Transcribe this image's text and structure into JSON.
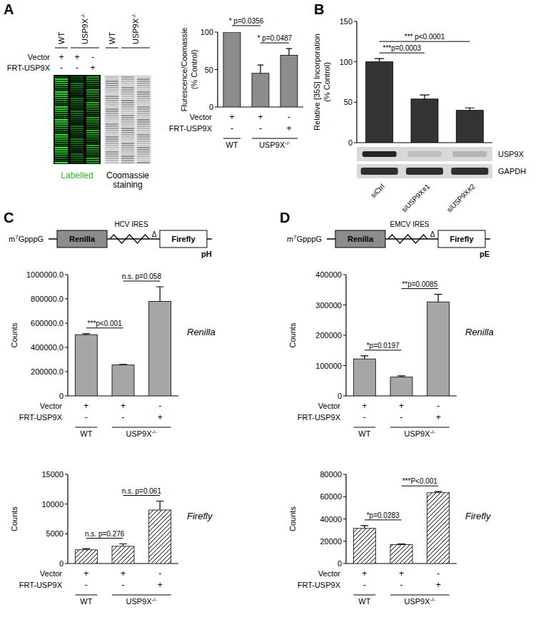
{
  "chart_data": [
    {
      "type": "bar",
      "ylabel": [
        "Flurescence/Coomassie",
        "(% Control)"
      ],
      "categories": [
        null,
        null,
        null
      ],
      "values": [
        100,
        45,
        69
      ],
      "errors": [
        1,
        11,
        9
      ],
      "color": "#8c8c8c",
      "ylim": [
        0,
        100
      ],
      "yticks": [
        0,
        50,
        100
      ],
      "annotations": [
        {
          "text": "* p=0.0356",
          "from": 0,
          "to": 1
        },
        {
          "text": "* p=0.0487",
          "from": 1,
          "to": 2
        }
      ],
      "conditions": [
        {
          "label": "Vector",
          "marks": [
            "+",
            "+",
            "-"
          ]
        },
        {
          "label": "FRT-USP9X",
          "marks": [
            "-",
            "-",
            "+"
          ]
        }
      ],
      "groups": [
        {
          "label": "WT",
          "count": 1
        },
        {
          "label": "USP9X",
          "sup": "-/-",
          "count": 2
        }
      ]
    },
    {
      "type": "bar",
      "ylabel": [
        "Relative [35S] Incorporation",
        "(% Control)"
      ],
      "categories": [
        "siCtrl",
        "siUSP9X#1",
        "siUSP9X#2"
      ],
      "values": [
        100,
        54,
        40
      ],
      "errors": [
        4,
        5,
        3
      ],
      "color": "#333333",
      "ylim": [
        0,
        150
      ],
      "yticks": [
        0,
        50,
        100,
        150
      ],
      "annotations": [
        {
          "text": "***p=0.0003",
          "from": 0,
          "to": 1
        },
        {
          "text": "*** p<0.0001",
          "from": 0,
          "to": 2
        }
      ]
    },
    {
      "type": "bar",
      "ylabel": [
        "Counts"
      ],
      "subtitle": "Renilla",
      "categories": [
        null,
        null,
        null
      ],
      "values": [
        505000,
        255000,
        780000
      ],
      "errors": [
        8000,
        5000,
        120000
      ],
      "color": "#a6a6a6",
      "ylim": [
        0,
        1000000
      ],
      "yticks": [
        0,
        {
          "value": 200000,
          "label": "200000.0"
        },
        {
          "value": 400000,
          "label": "400000.0"
        },
        {
          "value": 600000,
          "label": "600000.0"
        },
        {
          "value": 800000,
          "label": "800000.0"
        },
        {
          "value": 1000000,
          "label": "1000000.0"
        }
      ],
      "annotations": [
        {
          "text": "***p<0.001",
          "from": 0,
          "to": 1
        },
        {
          "text": "n.s. p=0.058",
          "from": 1,
          "to": 2
        }
      ],
      "conditions": [
        {
          "label": "Vector",
          "marks": [
            "+",
            "+",
            "-"
          ]
        },
        {
          "label": "FRT-USP9X",
          "marks": [
            "-",
            "-",
            "+"
          ]
        }
      ],
      "groups": [
        {
          "label": "WT",
          "count": 1
        },
        {
          "label": "USP9X",
          "sup": "-/-",
          "count": 2
        }
      ]
    },
    {
      "type": "bar",
      "ylabel": [
        "Counts"
      ],
      "subtitle": "Firefly",
      "categories": [
        null,
        null,
        null
      ],
      "values": [
        2300,
        2900,
        9000
      ],
      "errors": [
        200,
        400,
        1500
      ],
      "color": "#ffffff",
      "ylim": [
        0,
        15000
      ],
      "yticks": [
        0,
        5000,
        10000,
        15000
      ],
      "annotations": [
        {
          "text": "n.s. p=0.276",
          "from": 0,
          "to": 1
        },
        {
          "text": "n.s. p=0.061",
          "from": 1,
          "to": 2
        }
      ],
      "conditions": [
        {
          "label": "Vector",
          "marks": [
            "+",
            "+",
            "-"
          ]
        },
        {
          "label": "FRT-USP9X",
          "marks": [
            "-",
            "-",
            "+"
          ]
        }
      ],
      "groups": [
        {
          "label": "WT",
          "count": 1
        },
        {
          "label": "USP9X",
          "sup": "-/-",
          "count": 2
        }
      ]
    },
    {
      "type": "bar",
      "ylabel": [
        "Counts"
      ],
      "subtitle": "Renilla",
      "categories": [
        null,
        null,
        null
      ],
      "values": [
        122000,
        62000,
        310000
      ],
      "errors": [
        10000,
        4000,
        25000
      ],
      "color": "#a6a6a6",
      "ylim": [
        0,
        400000
      ],
      "yticks": [
        0,
        100000,
        200000,
        300000,
        400000
      ],
      "annotations": [
        {
          "text": "*p=0.0197",
          "from": 0,
          "to": 1
        },
        {
          "text": "**p=0.0085",
          "from": 1,
          "to": 2
        }
      ],
      "conditions": [
        {
          "label": "Vector",
          "marks": [
            "+",
            "+",
            "-"
          ]
        },
        {
          "label": "FRT-USP9X",
          "marks": [
            "-",
            "-",
            "+"
          ]
        }
      ],
      "groups": [
        {
          "label": "WT",
          "count": 1
        },
        {
          "label": "USP9X",
          "sup": "-/-",
          "count": 2
        }
      ]
    },
    {
      "type": "bar",
      "ylabel": [
        "Counts"
      ],
      "subtitle": "Firefly",
      "categories": [
        null,
        null,
        null
      ],
      "values": [
        31500,
        17000,
        63500
      ],
      "errors": [
        2500,
        500,
        1000
      ],
      "color": "#ffffff",
      "ylim": [
        0,
        80000
      ],
      "yticks": [
        0,
        20000,
        40000,
        60000,
        80000
      ],
      "annotations": [
        {
          "text": "*p=0.0283",
          "from": 0,
          "to": 1
        },
        {
          "text": "***P<0.001",
          "from": 1,
          "to": 2
        }
      ],
      "conditions": [
        {
          "label": "Vector",
          "marks": [
            "+",
            "+",
            "-"
          ]
        },
        {
          "label": "FRT-USP9X",
          "marks": [
            "-",
            "-",
            "+"
          ]
        }
      ],
      "groups": [
        {
          "label": "WT",
          "count": 1
        },
        {
          "label": "USP9X",
          "sup": "-/-",
          "count": 2
        }
      ]
    }
  ],
  "figure": {
    "panel_labels": [
      "A",
      "B",
      "C",
      "D"
    ],
    "gel": {
      "columns": [
        {
          "label": "WT"
        },
        {
          "label": "USP9X",
          "sup": "-/-"
        },
        {
          "label": "WT"
        },
        {
          "label": "USP9X",
          "sup": "-/-"
        }
      ],
      "rows": [
        {
          "label": "Vector",
          "marks": [
            "+",
            "+",
            "-"
          ]
        },
        {
          "label": "FRT-USP9X",
          "marks": [
            "-",
            "-",
            "+"
          ]
        }
      ],
      "captions": [
        [
          "Labelled"
        ],
        [
          "Coomassie",
          "staining"
        ]
      ]
    },
    "blot": {
      "labels": [
        "USP9X",
        "GAPDH"
      ]
    },
    "constructs": [
      {
        "cap": [
          "m",
          "7",
          "GpppG"
        ],
        "boxes": [
          "Renilla",
          "Firefly"
        ],
        "ires": "HCV IRES",
        "delta": "Δ",
        "name": "pH"
      },
      {
        "cap": [
          "m",
          "7",
          "GpppG"
        ],
        "boxes": [
          "Renilla",
          "Firefly"
        ],
        "ires": "EMCV IRES",
        "delta": "Δ",
        "name": "pE"
      }
    ]
  }
}
